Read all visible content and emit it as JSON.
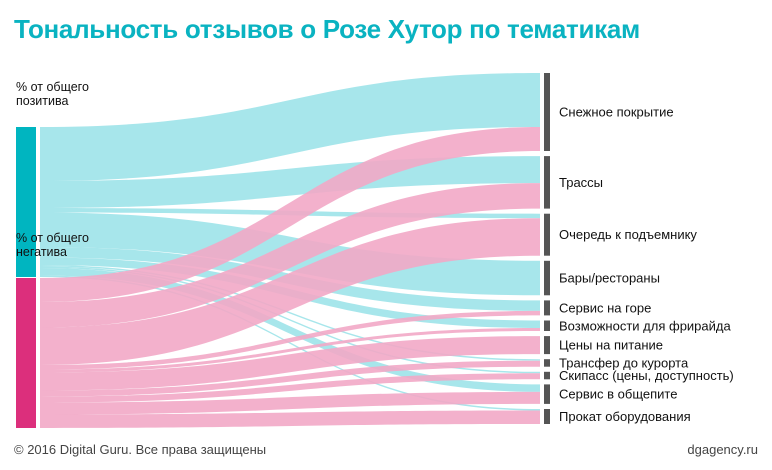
{
  "title": "Тональность отзывов о Розе Хутор по тематикам",
  "footer": {
    "copyright": "© 2016 Digital Guru. Все права защищены",
    "site": "dgagency.ru"
  },
  "colors": {
    "positive_node": "#00b5c0",
    "positive_flow": "#9de3e9",
    "negative_node": "#dc2f7c",
    "negative_flow": "#f2a9c6",
    "target_node": "#555555",
    "title": "#0ab3c1"
  },
  "chart_data": {
    "type": "sankey",
    "value_unit": "% от общего",
    "sources": [
      {
        "id": "pos",
        "label_lines": [
          "% от общего",
          "позитива"
        ],
        "total": 100
      },
      {
        "id": "neg",
        "label_lines": [
          "% от общего",
          "негатива"
        ],
        "total": 100
      }
    ],
    "targets": [
      "Снежное покрытие",
      "Трассы",
      "Очередь к подъемнику",
      "Бары/рестораны",
      "Сервис на горе",
      "Возможности для фрирайда",
      "Цены на питание",
      "Трансфер до курорта",
      "Скипасс (цены, доступность)",
      "Сервис в общепите",
      "Прокат оборудования"
    ],
    "flows": {
      "positive": [
        36,
        18,
        3,
        23,
        7,
        5,
        0,
        1,
        1,
        5,
        1
      ],
      "negative": [
        16,
        17,
        25,
        0,
        3,
        2,
        12,
        4,
        4,
        8,
        9
      ]
    }
  }
}
